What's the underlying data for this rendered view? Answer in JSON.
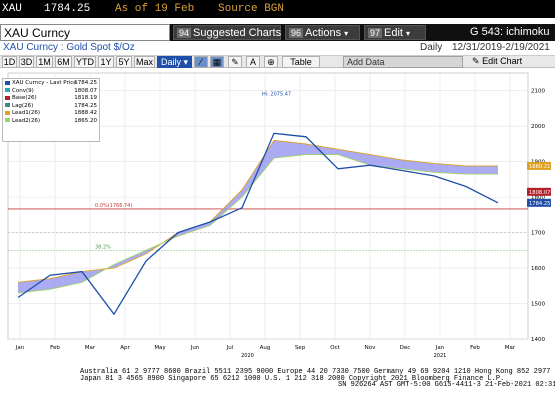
{
  "quote": {
    "ticker": "XAU",
    "price": "1784.25",
    "as_of": "As of 19 Feb",
    "source": "Source BGN"
  },
  "security": {
    "name": "XAU Curncy",
    "title": "G 543: ichimoku"
  },
  "toolbar": {
    "suggested": {
      "num": "94",
      "label": "Suggested Charts"
    },
    "actions": {
      "num": "96",
      "label": "Actions"
    },
    "edit": {
      "num": "97",
      "label": "Edit"
    }
  },
  "descriptor": {
    "text": "XAU Curncy : Gold Spot  $/Oz",
    "frequency": "Daily",
    "range": "12/31/2019-2/19/2021"
  },
  "range_buttons": [
    "1D",
    "3D",
    "1M",
    "6M",
    "YTD",
    "1Y",
    "5Y",
    "Max",
    "Daily"
  ],
  "range_selected": "Daily",
  "table_label": "Table",
  "add_data_placeholder": "Add Data",
  "edit_chart_label": "Edit Chart",
  "legend": {
    "items": [
      {
        "label": "XAU Curncy - Last Price",
        "value": "1784.25",
        "color": "#1f4fa8"
      },
      {
        "label": "Conv(9)",
        "value": "1808.07",
        "color": "#2aa6b8"
      },
      {
        "label": "Base(26)",
        "value": "1818.19",
        "color": "#b3202a"
      },
      {
        "label": "Lag(26)",
        "value": "1784.25",
        "color": "#3a8c8c"
      },
      {
        "label": "Lead1(26)",
        "value": "1888.42",
        "color": "#e0a020"
      },
      {
        "label": "Lead2(26)",
        "value": "1865.20",
        "color": "#9fd36a"
      }
    ]
  },
  "chart_labels": {
    "high_annot": "Hi: 2075.47",
    "fib_annot": "0.0%(1766.74)",
    "fib_annot2": "38.2%",
    "last_box": "1784.25",
    "lead_box": "1860.21",
    "base_box": "1808.07"
  },
  "chart_data": {
    "type": "line",
    "title": "",
    "xlabel": "",
    "ylabel": "",
    "ylim": [
      1400,
      2150
    ],
    "y_ticks": [
      "2100",
      "2000",
      "1900",
      "1800",
      "1700",
      "1600",
      "1500",
      "1400"
    ],
    "x_ticks": [
      "Jan",
      "Feb",
      "Mar",
      "Apr",
      "May",
      "Jun",
      "Jul",
      "Aug",
      "Sep",
      "Oct",
      "Nov",
      "Dec",
      "Jan",
      "Feb",
      "Mar"
    ],
    "x_year_labels": [
      "2020",
      "2021"
    ],
    "series": [
      {
        "name": "XAU Curncy - Last Price",
        "values": [
          1517,
          1580,
          1590,
          1470,
          1620,
          1700,
          1730,
          1770,
          1980,
          1970,
          1880,
          1890,
          1875,
          1860,
          1830,
          1784
        ]
      },
      {
        "name": "Lead1(26)",
        "values": [
          1560,
          1570,
          1590,
          1600,
          1640,
          1700,
          1730,
          1820,
          1960,
          1950,
          1935,
          1920,
          1905,
          1895,
          1888,
          1888
        ]
      },
      {
        "name": "Lead2(26)",
        "values": [
          1530,
          1540,
          1560,
          1610,
          1650,
          1690,
          1720,
          1800,
          1910,
          1920,
          1920,
          1890,
          1880,
          1870,
          1865,
          1865
        ]
      }
    ]
  },
  "footer": {
    "line1": "Australia 61 2 9777 8600 Brazil 5511 2395 9000 Europe 44 20 7330 7500 Germany 49 69 9204 1210 Hong Kong 852 2977 6000",
    "line2": "Japan 81 3 4565 8900         Singapore 65 6212 1000       U.S. 1 212 318 2000          Copyright 2021 Bloomberg Finance L.P.",
    "line3": "SN 926264 AST  GMT-5:00 G615-4411-3 21-Feb-2021 02:31:23"
  }
}
